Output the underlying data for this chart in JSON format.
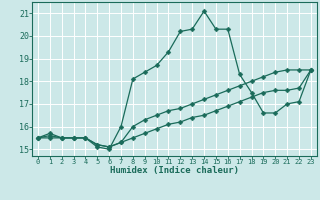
{
  "xlabel": "Humidex (Indice chaleur)",
  "bg_color": "#cce8e8",
  "grid_color": "#ffffff",
  "line_color": "#1a6b5a",
  "xlim": [
    -0.5,
    23.5
  ],
  "ylim": [
    14.7,
    21.5
  ],
  "xticks": [
    0,
    1,
    2,
    3,
    4,
    5,
    6,
    7,
    8,
    9,
    10,
    11,
    12,
    13,
    14,
    15,
    16,
    17,
    18,
    19,
    20,
    21,
    22,
    23
  ],
  "yticks": [
    15,
    16,
    17,
    18,
    19,
    20,
    21
  ],
  "curve1_x": [
    0,
    1,
    2,
    3,
    4,
    5,
    6,
    7,
    8,
    9,
    10,
    11,
    12,
    13,
    14,
    15,
    16,
    17,
    18,
    19,
    20,
    21,
    22,
    23
  ],
  "curve1_y": [
    15.5,
    15.7,
    15.5,
    15.5,
    15.5,
    15.1,
    15.0,
    16.0,
    18.1,
    18.4,
    18.7,
    19.3,
    20.2,
    20.3,
    21.1,
    20.3,
    20.3,
    18.3,
    17.5,
    16.6,
    16.6,
    17.0,
    17.1,
    18.5
  ],
  "curve2_x": [
    0,
    1,
    2,
    3,
    4,
    5,
    6,
    7,
    8,
    9,
    10,
    11,
    12,
    13,
    14,
    15,
    16,
    17,
    18,
    19,
    20,
    21,
    22,
    23
  ],
  "curve2_y": [
    15.5,
    15.6,
    15.5,
    15.5,
    15.5,
    15.2,
    15.1,
    15.3,
    16.0,
    16.3,
    16.5,
    16.7,
    16.8,
    17.0,
    17.2,
    17.4,
    17.6,
    17.8,
    18.0,
    18.2,
    18.4,
    18.5,
    18.5,
    18.5
  ],
  "curve3_x": [
    0,
    1,
    2,
    3,
    4,
    5,
    6,
    7,
    8,
    9,
    10,
    11,
    12,
    13,
    14,
    15,
    16,
    17,
    18,
    19,
    20,
    21,
    22,
    23
  ],
  "curve3_y": [
    15.5,
    15.5,
    15.5,
    15.5,
    15.5,
    15.2,
    15.1,
    15.3,
    15.5,
    15.7,
    15.9,
    16.1,
    16.2,
    16.4,
    16.5,
    16.7,
    16.9,
    17.1,
    17.3,
    17.5,
    17.6,
    17.6,
    17.7,
    18.5
  ]
}
